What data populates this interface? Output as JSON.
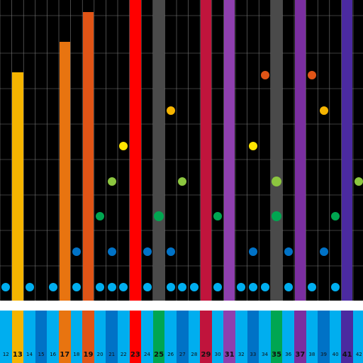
{
  "game": {
    "colors": {
      "background": "#000000",
      "grid_line": "#7a7a7a",
      "separator": "#ffffff",
      "key_light": "#00aeef",
      "key_dark": "#0072c6"
    },
    "columns": [
      {
        "number": "12",
        "major": false
      },
      {
        "number": "13",
        "major": true,
        "bar_color": "#f5b400",
        "bar_level": 0.76,
        "key_color": "#f5b400"
      },
      {
        "number": "14",
        "major": false,
        "dots": [
          "#00aeef"
        ]
      },
      {
        "number": "15",
        "major": false
      },
      {
        "number": "16",
        "major": false
      },
      {
        "number": "17",
        "major": true,
        "bar_color": "#e87410",
        "bar_level": 0.86,
        "key_color": "#e87410"
      },
      {
        "number": "18",
        "major": false,
        "dots": [
          "#00aeef",
          "#0072c6"
        ]
      },
      {
        "number": "19",
        "major": true,
        "bar_color": "#e05416",
        "bar_level": 0.96,
        "key_color": "#e05416"
      },
      {
        "number": "20",
        "major": false,
        "dots": [
          "#00aeef",
          "#00a651"
        ]
      },
      {
        "number": "21",
        "major": false,
        "dots": [
          "#00aeef",
          "#0072c6",
          "#8cc63f"
        ]
      },
      {
        "number": "22",
        "major": false,
        "dots": [
          "#00aeef",
          "#ffe600"
        ]
      },
      {
        "number": "23",
        "major": true,
        "bar_color": "#ff0000",
        "bar_level": 1.0,
        "key_color": "#ff0000"
      },
      {
        "number": "24",
        "major": false,
        "dots": [
          "#00aeef",
          "#0072c6"
        ]
      },
      {
        "number": "25",
        "major": true,
        "bar_color": "#4a4a4a",
        "bar_level": 1.0,
        "key_color": "#00a651",
        "dots": [
          "#00a651"
        ]
      },
      {
        "number": "26",
        "major": false,
        "dots": [
          "#00aeef",
          "#0072c6",
          "#f5b400"
        ]
      },
      {
        "number": "27",
        "major": false,
        "dots": [
          "#00aeef",
          "#8cc63f"
        ]
      },
      {
        "number": "28",
        "major": false
      },
      {
        "number": "29",
        "major": true,
        "bar_color": "#c0143c",
        "bar_level": 1.0,
        "key_color": "#c0143c"
      },
      {
        "number": "30",
        "major": false,
        "dots": [
          "#00aeef",
          "#00a651"
        ]
      },
      {
        "number": "31",
        "major": true,
        "bar_color": "#8e3fae",
        "bar_level": 1.0,
        "key_color": "#8e3fae"
      },
      {
        "number": "32",
        "major": false
      },
      {
        "number": "33",
        "major": false,
        "dots": [
          "#00aeef",
          "#0072c6",
          "#ffe600"
        ]
      },
      {
        "number": "34",
        "major": false,
        "dots": [
          "#00aeef",
          "#e05416"
        ]
      },
      {
        "number": "35",
        "major": true,
        "bar_color": "#4a4a4a",
        "bar_level": 1.0,
        "key_color": "#00a651",
        "dots": [
          "#00a651",
          "#8cc63f"
        ]
      },
      {
        "number": "36",
        "major": false,
        "dots": [
          "#00aeef",
          "#0072c6"
        ]
      },
      {
        "number": "37",
        "major": true,
        "bar_color": "#7a2ea0",
        "bar_level": 1.0,
        "key_color": "#7a2ea0"
      },
      {
        "number": "38",
        "major": false,
        "dots": [
          "#00aeef",
          "#e05416"
        ]
      },
      {
        "number": "39",
        "major": false,
        "dots": [
          "#0072c6",
          "#f5b400"
        ]
      },
      {
        "number": "40",
        "major": false,
        "dots": [
          "#00aeef",
          "#00a651"
        ]
      },
      {
        "number": "41",
        "major": true,
        "bar_color": "#4b2aa0",
        "bar_level": 1.0,
        "key_color": "#4b2aa0"
      },
      {
        "number": "42",
        "major": false,
        "dots": [
          "#8cc63f"
        ]
      }
    ]
  }
}
